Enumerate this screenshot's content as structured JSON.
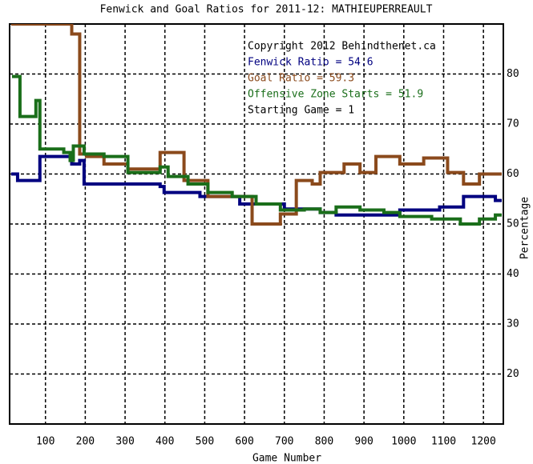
{
  "chart_data": {
    "type": "line",
    "title": "Fenwick and Goal Ratios for 2011-12: MATHIEUPERREAULT",
    "x_label": "Game Number",
    "y_label": "Percentage",
    "xlim": [
      10,
      1250
    ],
    "ylim": [
      10,
      90
    ],
    "xticks": [
      100,
      200,
      300,
      400,
      500,
      600,
      700,
      800,
      900,
      1000,
      1100,
      1200
    ],
    "yticks": [
      20,
      30,
      40,
      50,
      60,
      70,
      80
    ],
    "grid": true,
    "step": true,
    "annotations": [
      {
        "text": "Copyright 2012 Behindthenet.ca",
        "color": "#000000"
      },
      {
        "text": "Fenwick Ratio = 54.6",
        "color": "#000080"
      },
      {
        "text": "Goal Ratio = 59.3",
        "color": "#8b4a1c"
      },
      {
        "text": "Offensive Zone Starts = 51.9",
        "color": "#1a6e1a"
      },
      {
        "text": "Starting Game = 1",
        "color": "#000000"
      }
    ],
    "series": [
      {
        "name": "Fenwick Ratio",
        "color": "#000080",
        "x": [
          14,
          30,
          86,
          166,
          186,
          197,
          388,
          398,
          488,
          588,
          700,
          790,
          830,
          990,
          1090,
          1150,
          1230
        ],
        "values": [
          60,
          58.7,
          63.5,
          62,
          62.7,
          58,
          57.5,
          56.3,
          55.5,
          54,
          53,
          52.3,
          51.8,
          52.8,
          53.4,
          55.5,
          54.7
        ]
      },
      {
        "name": "Goal Ratio",
        "color": "#8b4a1c",
        "x": [
          14,
          166,
          186,
          203,
          247,
          307,
          388,
          448,
          508,
          619,
          690,
          730,
          770,
          790,
          850,
          890,
          930,
          990,
          1050,
          1110,
          1150,
          1190,
          1230
        ],
        "values": [
          90,
          88,
          64,
          63.5,
          62,
          61,
          64.3,
          58.7,
          55.5,
          50,
          52,
          58.7,
          58,
          60.3,
          62,
          60.3,
          63.5,
          62,
          63.2,
          60.3,
          58,
          60,
          60
        ]
      },
      {
        "name": "Offensive Zone Starts",
        "color": "#1a6e1a",
        "x": [
          16,
          36,
          76,
          86,
          146,
          162,
          170,
          197,
          247,
          307,
          388,
          408,
          458,
          508,
          569,
          629,
          690,
          750,
          790,
          830,
          890,
          950,
          990,
          1070,
          1142,
          1190,
          1230
        ],
        "values": [
          79.5,
          71.5,
          74.7,
          65,
          64.3,
          62.7,
          65.6,
          64,
          63.5,
          60.3,
          61.4,
          59.5,
          58,
          56.3,
          55.5,
          54,
          52.8,
          53,
          52.3,
          53.4,
          52.8,
          52.3,
          51.5,
          51,
          50,
          51,
          51.8
        ]
      }
    ]
  }
}
